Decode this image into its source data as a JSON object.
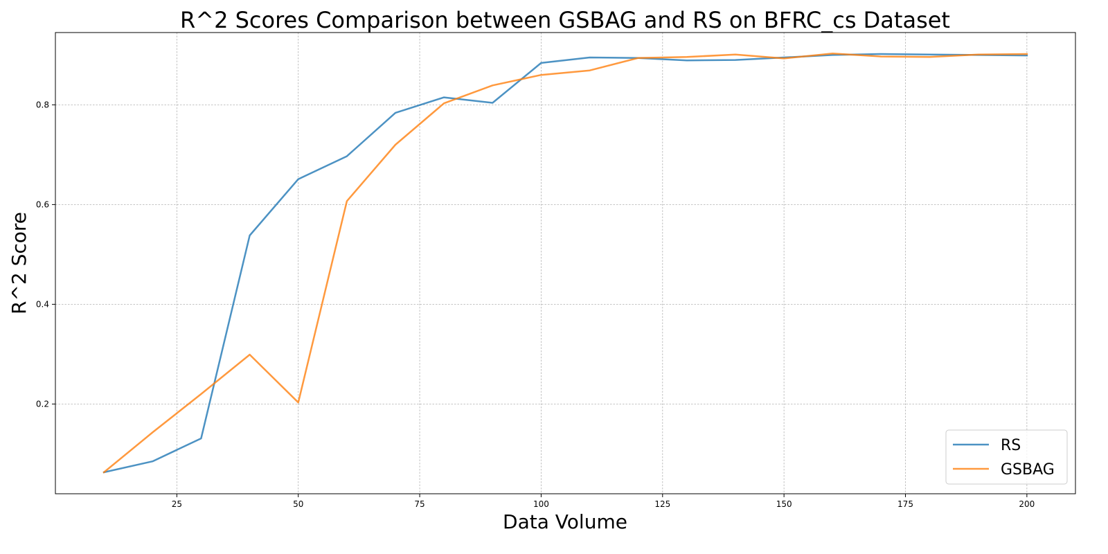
{
  "chart_data": {
    "type": "line",
    "title": "R^2 Scores Comparison between GSBAG and RS on BFRC_cs Dataset",
    "xlabel": "Data Volume",
    "ylabel": "R^2 Score",
    "x": [
      10,
      20,
      30,
      40,
      50,
      60,
      70,
      80,
      90,
      100,
      110,
      120,
      130,
      140,
      150,
      160,
      170,
      180,
      190,
      200
    ],
    "xlim": [
      0,
      210
    ],
    "ylim": [
      0.02,
      0.945
    ],
    "xticks": [
      25,
      50,
      75,
      100,
      125,
      150,
      175,
      200
    ],
    "yticks": [
      0.2,
      0.4,
      0.6,
      0.8
    ],
    "grid": true,
    "legend_position": "lower-right",
    "series": [
      {
        "name": "RS",
        "color": "#1f77b4",
        "values": [
          0.063,
          0.085,
          0.131,
          0.538,
          0.651,
          0.697,
          0.784,
          0.815,
          0.804,
          0.884,
          0.895,
          0.894,
          0.889,
          0.89,
          0.895,
          0.9,
          0.902,
          0.901,
          0.9,
          0.899
        ]
      },
      {
        "name": "GSBAG",
        "color": "#ff7f0e",
        "values": [
          0.063,
          0.143,
          0.22,
          0.299,
          0.203,
          0.607,
          0.72,
          0.803,
          0.839,
          0.86,
          0.869,
          0.894,
          0.896,
          0.901,
          0.893,
          0.903,
          0.897,
          0.896,
          0.901,
          0.902
        ]
      }
    ]
  }
}
